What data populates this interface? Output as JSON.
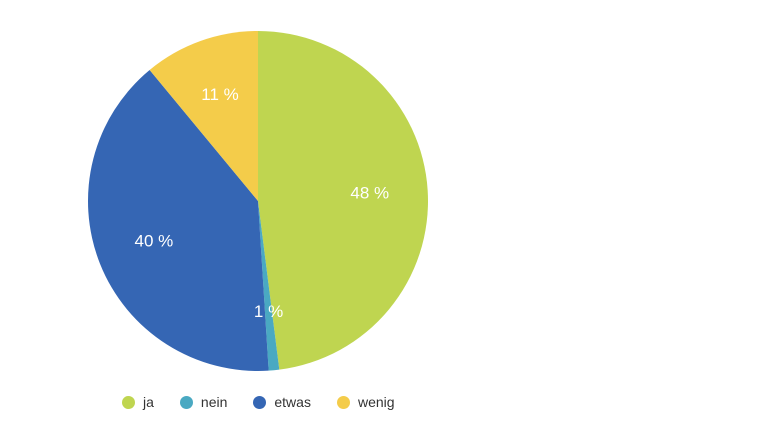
{
  "chart_data": {
    "type": "pie",
    "categories": [
      "ja",
      "nein",
      "etwas",
      "wenig"
    ],
    "values": [
      48,
      1,
      40,
      11
    ],
    "data_labels": [
      "48 %",
      "1 %",
      "40 %",
      "11 %"
    ],
    "colors": [
      "#bfd550",
      "#4aa9c2",
      "#3566b4",
      "#f4cc4a"
    ],
    "start_angle_deg": 0,
    "direction": "clockwise",
    "legend_position": "bottom-left",
    "title": ""
  }
}
